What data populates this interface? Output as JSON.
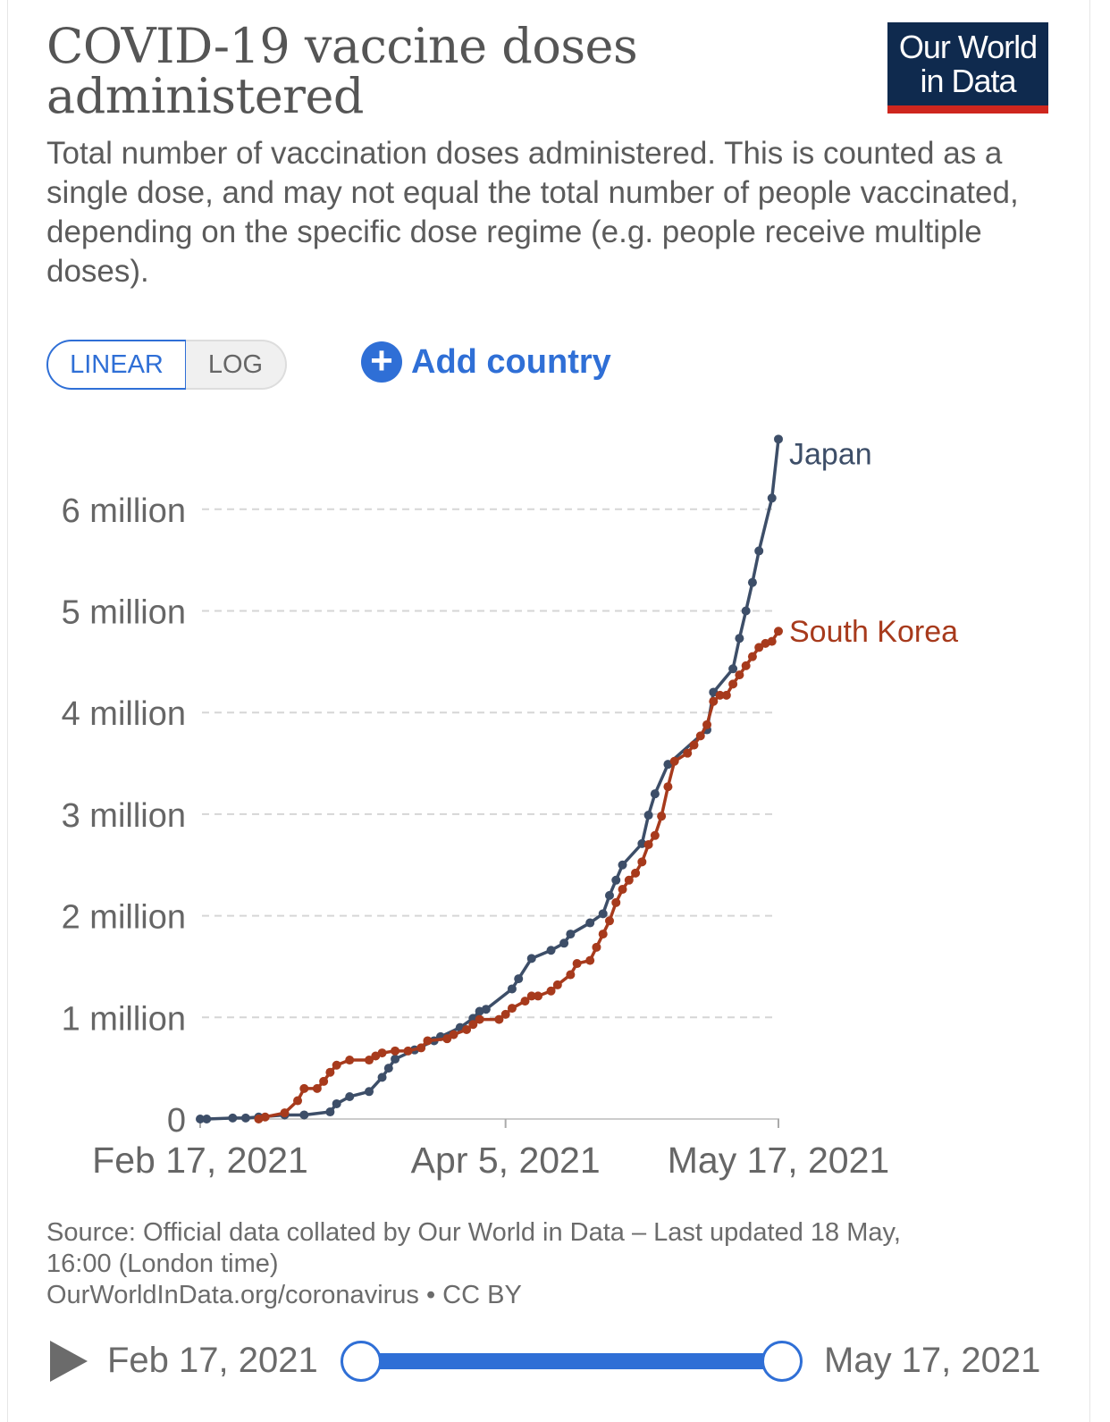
{
  "header": {
    "title": "COVID-19 vaccine doses administered",
    "subtitle": "Total number of vaccination doses administered. This is counted as a single dose, and may not equal the total number of people vaccinated, depending on the specific dose regime (e.g. people receive multiple doses).",
    "logo_line1": "Our World",
    "logo_line2": "in Data",
    "logo_colors": {
      "background": "#0f2a4e",
      "accent": "#ce261e"
    }
  },
  "controls": {
    "linear_label": "LINEAR",
    "log_label": "LOG",
    "selected_scale": "linear",
    "add_country_label": "Add country",
    "add_icon": "plus-circle-icon",
    "accent": "#2f6fd6"
  },
  "chart_data": {
    "type": "line",
    "title": "COVID-19 vaccine doses administered",
    "xlabel": "",
    "ylabel": "",
    "x_range": [
      "2021-02-17",
      "2021-05-17"
    ],
    "ylim": [
      0,
      6700000
    ],
    "y_scale": "linear",
    "grid": "horizontal dashed",
    "legend": "line-end labels",
    "y_ticks": [
      {
        "value": 0,
        "label": "0"
      },
      {
        "value": 1000000,
        "label": "1 million"
      },
      {
        "value": 2000000,
        "label": "2 million"
      },
      {
        "value": 3000000,
        "label": "3 million"
      },
      {
        "value": 4000000,
        "label": "4 million"
      },
      {
        "value": 5000000,
        "label": "5 million"
      },
      {
        "value": 6000000,
        "label": "6 million"
      }
    ],
    "x_ticks": [
      {
        "value": "2021-02-17",
        "label": "Feb 17, 2021"
      },
      {
        "value": "2021-04-05",
        "label": "Apr 5, 2021"
      },
      {
        "value": "2021-05-17",
        "label": "May 17, 2021"
      }
    ],
    "series": [
      {
        "name": "Japan",
        "color": "#3d4e68",
        "points": [
          [
            "2021-02-17",
            0
          ],
          [
            "2021-02-18",
            0
          ],
          [
            "2021-02-22",
            10000
          ],
          [
            "2021-02-24",
            10000
          ],
          [
            "2021-02-26",
            20000
          ],
          [
            "2021-03-02",
            40000
          ],
          [
            "2021-03-05",
            40000
          ],
          [
            "2021-03-09",
            70000
          ],
          [
            "2021-03-10",
            150000
          ],
          [
            "2021-03-12",
            220000
          ],
          [
            "2021-03-15",
            270000
          ],
          [
            "2021-03-17",
            410000
          ],
          [
            "2021-03-18",
            500000
          ],
          [
            "2021-03-19",
            590000
          ],
          [
            "2021-03-22",
            680000
          ],
          [
            "2021-03-25",
            770000
          ],
          [
            "2021-03-26",
            810000
          ],
          [
            "2021-03-29",
            900000
          ],
          [
            "2021-03-31",
            990000
          ],
          [
            "2021-04-01",
            1060000
          ],
          [
            "2021-04-02",
            1080000
          ],
          [
            "2021-04-06",
            1280000
          ],
          [
            "2021-04-07",
            1380000
          ],
          [
            "2021-04-09",
            1580000
          ],
          [
            "2021-04-12",
            1660000
          ],
          [
            "2021-04-14",
            1730000
          ],
          [
            "2021-04-15",
            1820000
          ],
          [
            "2021-04-18",
            1930000
          ],
          [
            "2021-04-20",
            2020000
          ],
          [
            "2021-04-21",
            2200000
          ],
          [
            "2021-04-22",
            2350000
          ],
          [
            "2021-04-23",
            2500000
          ],
          [
            "2021-04-26",
            2710000
          ],
          [
            "2021-04-27",
            2990000
          ],
          [
            "2021-04-28",
            3200000
          ],
          [
            "2021-04-30",
            3490000
          ],
          [
            "2021-05-06",
            3830000
          ],
          [
            "2021-05-07",
            4200000
          ],
          [
            "2021-05-10",
            4430000
          ],
          [
            "2021-05-11",
            4730000
          ],
          [
            "2021-05-12",
            5000000
          ],
          [
            "2021-05-13",
            5280000
          ],
          [
            "2021-05-14",
            5590000
          ],
          [
            "2021-05-16",
            6110000
          ],
          [
            "2021-05-17",
            6690000
          ]
        ]
      },
      {
        "name": "South Korea",
        "color": "#a73a1c",
        "points": [
          [
            "2021-02-26",
            0
          ],
          [
            "2021-02-27",
            20000
          ],
          [
            "2021-03-02",
            60000
          ],
          [
            "2021-03-04",
            180000
          ],
          [
            "2021-03-05",
            300000
          ],
          [
            "2021-03-07",
            300000
          ],
          [
            "2021-03-08",
            370000
          ],
          [
            "2021-03-09",
            460000
          ],
          [
            "2021-03-10",
            530000
          ],
          [
            "2021-03-12",
            580000
          ],
          [
            "2021-03-15",
            580000
          ],
          [
            "2021-03-16",
            620000
          ],
          [
            "2021-03-17",
            650000
          ],
          [
            "2021-03-19",
            670000
          ],
          [
            "2021-03-21",
            670000
          ],
          [
            "2021-03-23",
            700000
          ],
          [
            "2021-03-24",
            770000
          ],
          [
            "2021-03-27",
            790000
          ],
          [
            "2021-03-28",
            830000
          ],
          [
            "2021-03-30",
            880000
          ],
          [
            "2021-03-31",
            930000
          ],
          [
            "2021-04-01",
            980000
          ],
          [
            "2021-04-04",
            980000
          ],
          [
            "2021-04-05",
            1030000
          ],
          [
            "2021-04-06",
            1090000
          ],
          [
            "2021-04-08",
            1160000
          ],
          [
            "2021-04-09",
            1210000
          ],
          [
            "2021-04-10",
            1210000
          ],
          [
            "2021-04-12",
            1260000
          ],
          [
            "2021-04-13",
            1320000
          ],
          [
            "2021-04-15",
            1420000
          ],
          [
            "2021-04-16",
            1530000
          ],
          [
            "2021-04-18",
            1560000
          ],
          [
            "2021-04-19",
            1690000
          ],
          [
            "2021-04-20",
            1820000
          ],
          [
            "2021-04-21",
            1950000
          ],
          [
            "2021-04-22",
            2130000
          ],
          [
            "2021-04-23",
            2260000
          ],
          [
            "2021-04-24",
            2350000
          ],
          [
            "2021-04-25",
            2420000
          ],
          [
            "2021-04-26",
            2530000
          ],
          [
            "2021-04-27",
            2700000
          ],
          [
            "2021-04-28",
            2790000
          ],
          [
            "2021-04-29",
            2980000
          ],
          [
            "2021-04-30",
            3270000
          ],
          [
            "2021-05-01",
            3520000
          ],
          [
            "2021-05-03",
            3600000
          ],
          [
            "2021-05-04",
            3680000
          ],
          [
            "2021-05-05",
            3770000
          ],
          [
            "2021-05-06",
            3880000
          ],
          [
            "2021-05-07",
            4110000
          ],
          [
            "2021-05-08",
            4170000
          ],
          [
            "2021-05-09",
            4170000
          ],
          [
            "2021-05-10",
            4280000
          ],
          [
            "2021-05-11",
            4370000
          ],
          [
            "2021-05-12",
            4460000
          ],
          [
            "2021-05-13",
            4550000
          ],
          [
            "2021-05-14",
            4640000
          ],
          [
            "2021-05-15",
            4680000
          ],
          [
            "2021-05-16",
            4700000
          ],
          [
            "2021-05-17",
            4800000
          ]
        ]
      }
    ]
  },
  "footer": {
    "source": "Source: Official data collated by Our World in Data – Last updated 18 May, 16:00 (London time)",
    "link": "OurWorldInData.org/coronavirus • CC BY"
  },
  "timeline": {
    "start_label": "Feb 17, 2021",
    "end_label": "May 17, 2021",
    "play_icon": "play-icon",
    "range_selected": [
      0,
      1
    ]
  }
}
